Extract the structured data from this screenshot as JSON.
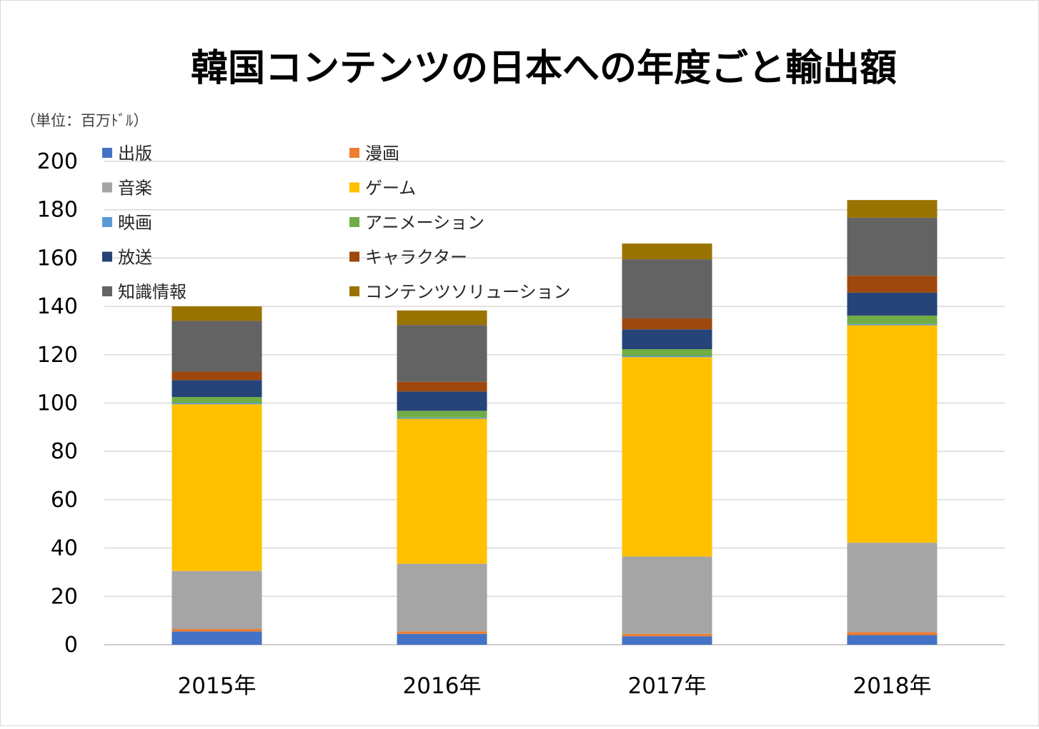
{
  "chart_data": {
    "type": "bar",
    "stacked": true,
    "title": "韓国コンテンツの日本への年度ごと輸出額",
    "unit_label": "（単位：百万ﾄﾞﾙ）",
    "categories": [
      "2015年",
      "2016年",
      "2017年",
      "2018年"
    ],
    "ylim": [
      0,
      200
    ],
    "yticks": [
      0,
      20,
      40,
      60,
      80,
      100,
      120,
      140,
      160,
      180,
      200
    ],
    "grid": true,
    "legend_position": "top-left (inside plot)",
    "series": [
      {
        "name": "出版",
        "color": "#4472C4",
        "values": [
          5.5,
          4.5,
          3.5,
          4.0
        ]
      },
      {
        "name": "漫画",
        "color": "#ED7D31",
        "values": [
          1.0,
          1.0,
          1.0,
          1.2
        ]
      },
      {
        "name": "音楽",
        "color": "#A5A5A5",
        "values": [
          24.0,
          28.0,
          32.0,
          37.0
        ]
      },
      {
        "name": "ゲーム",
        "color": "#FFC000",
        "values": [
          69.0,
          60.0,
          82.5,
          90.0
        ]
      },
      {
        "name": "映画",
        "color": "#5B9BD5",
        "values": [
          0.5,
          0.5,
          0.5,
          0.5
        ]
      },
      {
        "name": "アニメーション",
        "color": "#70AD47",
        "values": [
          2.5,
          2.8,
          2.8,
          3.5
        ]
      },
      {
        "name": "放送",
        "color": "#264478",
        "values": [
          7.0,
          8.0,
          8.2,
          9.5
        ]
      },
      {
        "name": "キャラクター",
        "color": "#9E480E",
        "values": [
          3.5,
          4.0,
          4.5,
          7.0
        ]
      },
      {
        "name": "知識情報",
        "color": "#636363",
        "values": [
          21.0,
          23.5,
          24.5,
          24.0
        ]
      },
      {
        "name": "コンテンツソリューション",
        "color": "#997300",
        "values": [
          6.0,
          6.0,
          6.5,
          7.3
        ]
      }
    ]
  }
}
